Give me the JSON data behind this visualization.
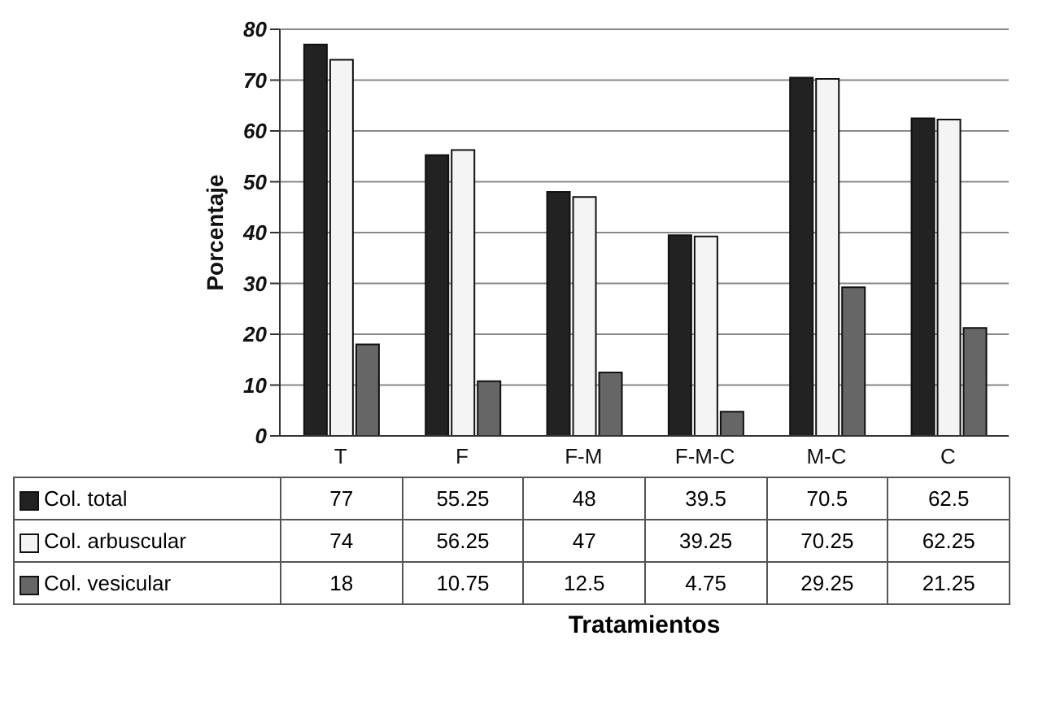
{
  "chart_data": {
    "type": "bar",
    "annotations": [
      "Tratamientos"
    ],
    "ylabel": "Porcentaje",
    "categories": [
      "T",
      "F",
      "F-M",
      "F-M-C",
      "M-C",
      "C"
    ],
    "series": [
      {
        "name": "Col. total",
        "color": "#222222",
        "values": [
          77,
          55.25,
          48,
          39.5,
          70.5,
          62.5
        ]
      },
      {
        "name": "Col. arbuscular",
        "color": "#f4f4f4",
        "values": [
          74,
          56.25,
          47,
          39.25,
          70.25,
          62.25
        ]
      },
      {
        "name": "Col. vesicular",
        "color": "#666666",
        "values": [
          18,
          10.75,
          12.5,
          4.75,
          29.25,
          21.25
        ]
      }
    ],
    "ylim": [
      0,
      80
    ],
    "yticks": [
      0,
      10,
      20,
      30,
      40,
      50,
      60,
      70,
      80
    ],
    "grid": "y",
    "legend": "bottom",
    "data_labels": true
  }
}
